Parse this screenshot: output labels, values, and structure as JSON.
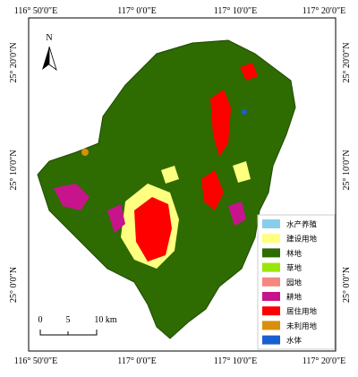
{
  "frame": {
    "top_labels": [
      "116° 50′0″E",
      "117° 0′0″E",
      "117° 10′0″E",
      "117° 20′0″E"
    ],
    "bottom_labels": [
      "116° 50′0″E",
      "117° 0′0″E",
      "117° 10′0″E",
      "117° 20′0″E"
    ],
    "left_labels": [
      "25° 20′0″N",
      "25° 10′0″N",
      "25° 0′0″N"
    ],
    "right_labels": [
      "25° 20′0″N",
      "25° 10′0″N",
      "25° 0′0″N"
    ]
  },
  "north_arrow": {
    "label": "N"
  },
  "scale_bar": {
    "labels": [
      "0",
      "5",
      "10 km"
    ]
  },
  "legend": {
    "items": [
      {
        "label": "水产养殖",
        "color": "#87ceeb"
      },
      {
        "label": "建设用地",
        "color": "#ffff80"
      },
      {
        "label": "林地",
        "color": "#2e6b00"
      },
      {
        "label": "草地",
        "color": "#9be60a"
      },
      {
        "label": "园地",
        "color": "#f4877f"
      },
      {
        "label": "耕地",
        "color": "#c8148c"
      },
      {
        "label": "居住用地",
        "color": "#ff0000"
      },
      {
        "label": "未利用地",
        "color": "#d98e0c"
      },
      {
        "label": "水体",
        "color": "#1a5fd0"
      }
    ]
  }
}
